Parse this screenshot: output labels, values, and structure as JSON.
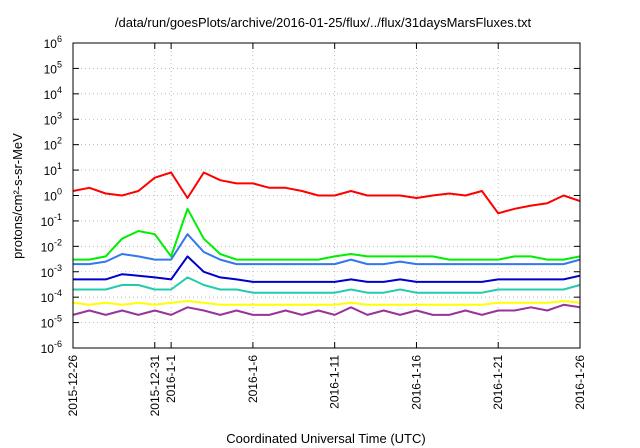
{
  "chart_data": {
    "type": "line",
    "title": "/data/run/goesPlots/archive/2016-01-25/flux/../flux/31daysMarsFluxes.txt",
    "xlabel": "Coordinated Universal Time (UTC)",
    "ylabel": "protons/cm²-s-sr-MeV",
    "y_scale": "log",
    "ylim": [
      1e-06,
      1000000.0
    ],
    "y_ticks": [
      {
        "exp": -6,
        "label": "10",
        "sup": "-6"
      },
      {
        "exp": -5,
        "label": "10",
        "sup": "-5"
      },
      {
        "exp": -4,
        "label": "10",
        "sup": "-4"
      },
      {
        "exp": -3,
        "label": "10",
        "sup": "-3"
      },
      {
        "exp": -2,
        "label": "10",
        "sup": "-2"
      },
      {
        "exp": -1,
        "label": "10",
        "sup": "-1"
      },
      {
        "exp": 0,
        "label": "10",
        "sup": "0"
      },
      {
        "exp": 1,
        "label": "10",
        "sup": "1"
      },
      {
        "exp": 2,
        "label": "10",
        "sup": "2"
      },
      {
        "exp": 3,
        "label": "10",
        "sup": "3"
      },
      {
        "exp": 4,
        "label": "10",
        "sup": "4"
      },
      {
        "exp": 5,
        "label": "10",
        "sup": "5"
      },
      {
        "exp": 6,
        "label": "10",
        "sup": "6"
      }
    ],
    "xlim": [
      "2015-12-26",
      "2016-01-26"
    ],
    "x_ticks": [
      "2015-12-26",
      "2015-12-31",
      "2016-1-1",
      "2016-1-6",
      "2016-1-11",
      "2016-1-16",
      "2016-1-21",
      "2016-1-26"
    ],
    "x_tick_dates": [
      "2015-12-26",
      "2015-12-31",
      "2016-01-01",
      "2016-01-06",
      "2016-01-11",
      "2016-01-16",
      "2016-01-21",
      "2016-01-26"
    ],
    "grid": true,
    "legend": "none",
    "series": [
      {
        "color": "#ff0000",
        "x": [
          "2015-12-26",
          "2015-12-27",
          "2015-12-28",
          "2015-12-29",
          "2015-12-30",
          "2015-12-31",
          "2016-01-01",
          "2016-01-02",
          "2016-01-03",
          "2016-01-04",
          "2016-01-05",
          "2016-01-06",
          "2016-01-07",
          "2016-01-08",
          "2016-01-09",
          "2016-01-10",
          "2016-01-11",
          "2016-01-12",
          "2016-01-13",
          "2016-01-14",
          "2016-01-15",
          "2016-01-16",
          "2016-01-17",
          "2016-01-18",
          "2016-01-19",
          "2016-01-20",
          "2016-01-21",
          "2016-01-22",
          "2016-01-23",
          "2016-01-24",
          "2016-01-25",
          "2016-01-26"
        ],
        "values": [
          1.5,
          2,
          1.2,
          1,
          1.5,
          5,
          8,
          0.8,
          8,
          4,
          3,
          3,
          2,
          2,
          1.5,
          1,
          1,
          1.5,
          1,
          1,
          1,
          0.8,
          1,
          1.2,
          1,
          1.5,
          0.2,
          0.3,
          0.4,
          0.5,
          1,
          0.6
        ]
      },
      {
        "color": "#00ee00",
        "x": [
          "2015-12-26",
          "2015-12-27",
          "2015-12-28",
          "2015-12-29",
          "2015-12-30",
          "2015-12-31",
          "2016-01-01",
          "2016-01-02",
          "2016-01-03",
          "2016-01-04",
          "2016-01-05",
          "2016-01-06",
          "2016-01-07",
          "2016-01-08",
          "2016-01-09",
          "2016-01-10",
          "2016-01-11",
          "2016-01-12",
          "2016-01-13",
          "2016-01-14",
          "2016-01-15",
          "2016-01-16",
          "2016-01-17",
          "2016-01-18",
          "2016-01-19",
          "2016-01-20",
          "2016-01-21",
          "2016-01-22",
          "2016-01-23",
          "2016-01-24",
          "2016-01-25",
          "2016-01-26"
        ],
        "values": [
          0.003,
          0.003,
          0.004,
          0.02,
          0.04,
          0.03,
          0.004,
          0.3,
          0.02,
          0.005,
          0.003,
          0.003,
          0.003,
          0.003,
          0.003,
          0.003,
          0.004,
          0.005,
          0.004,
          0.004,
          0.004,
          0.004,
          0.004,
          0.003,
          0.003,
          0.003,
          0.003,
          0.004,
          0.004,
          0.003,
          0.003,
          0.004
        ]
      },
      {
        "color": "#3377ee",
        "x": [
          "2015-12-26",
          "2015-12-27",
          "2015-12-28",
          "2015-12-29",
          "2015-12-30",
          "2015-12-31",
          "2016-01-01",
          "2016-01-02",
          "2016-01-03",
          "2016-01-04",
          "2016-01-05",
          "2016-01-06",
          "2016-01-07",
          "2016-01-08",
          "2016-01-09",
          "2016-01-10",
          "2016-01-11",
          "2016-01-12",
          "2016-01-13",
          "2016-01-14",
          "2016-01-15",
          "2016-01-16",
          "2016-01-17",
          "2016-01-18",
          "2016-01-19",
          "2016-01-20",
          "2016-01-21",
          "2016-01-22",
          "2016-01-23",
          "2016-01-24",
          "2016-01-25",
          "2016-01-26"
        ],
        "values": [
          0.002,
          0.002,
          0.0025,
          0.005,
          0.004,
          0.003,
          0.003,
          0.03,
          0.006,
          0.003,
          0.002,
          0.002,
          0.002,
          0.002,
          0.002,
          0.002,
          0.002,
          0.003,
          0.002,
          0.002,
          0.0025,
          0.002,
          0.002,
          0.002,
          0.002,
          0.002,
          0.002,
          0.002,
          0.002,
          0.002,
          0.002,
          0.003
        ]
      },
      {
        "color": "#0000cc",
        "x": [
          "2015-12-26",
          "2015-12-27",
          "2015-12-28",
          "2015-12-29",
          "2015-12-30",
          "2015-12-31",
          "2016-01-01",
          "2016-01-02",
          "2016-01-03",
          "2016-01-04",
          "2016-01-05",
          "2016-01-06",
          "2016-01-07",
          "2016-01-08",
          "2016-01-09",
          "2016-01-10",
          "2016-01-11",
          "2016-01-12",
          "2016-01-13",
          "2016-01-14",
          "2016-01-15",
          "2016-01-16",
          "2016-01-17",
          "2016-01-18",
          "2016-01-19",
          "2016-01-20",
          "2016-01-21",
          "2016-01-22",
          "2016-01-23",
          "2016-01-24",
          "2016-01-25",
          "2016-01-26"
        ],
        "values": [
          0.0005,
          0.0005,
          0.0005,
          0.0008,
          0.0007,
          0.0006,
          0.0005,
          0.004,
          0.001,
          0.0006,
          0.0005,
          0.0004,
          0.0004,
          0.0004,
          0.0004,
          0.0004,
          0.0004,
          0.0005,
          0.0004,
          0.0004,
          0.0005,
          0.0004,
          0.0004,
          0.0004,
          0.0004,
          0.0004,
          0.0005,
          0.0005,
          0.0005,
          0.0005,
          0.0005,
          0.0007
        ]
      },
      {
        "color": "#22ccaa",
        "x": [
          "2015-12-26",
          "2015-12-27",
          "2015-12-28",
          "2015-12-29",
          "2015-12-30",
          "2015-12-31",
          "2016-01-01",
          "2016-01-02",
          "2016-01-03",
          "2016-01-04",
          "2016-01-05",
          "2016-01-06",
          "2016-01-07",
          "2016-01-08",
          "2016-01-09",
          "2016-01-10",
          "2016-01-11",
          "2016-01-12",
          "2016-01-13",
          "2016-01-14",
          "2016-01-15",
          "2016-01-16",
          "2016-01-17",
          "2016-01-18",
          "2016-01-19",
          "2016-01-20",
          "2016-01-21",
          "2016-01-22",
          "2016-01-23",
          "2016-01-24",
          "2016-01-25",
          "2016-01-26"
        ],
        "values": [
          0.0002,
          0.0002,
          0.0002,
          0.0003,
          0.0003,
          0.0002,
          0.0002,
          0.0006,
          0.0003,
          0.0002,
          0.0002,
          0.00015,
          0.00015,
          0.00015,
          0.00015,
          0.00015,
          0.00015,
          0.0002,
          0.00015,
          0.00015,
          0.0002,
          0.00015,
          0.00015,
          0.00015,
          0.00015,
          0.00015,
          0.0002,
          0.0002,
          0.0002,
          0.0002,
          0.0002,
          0.0003
        ]
      },
      {
        "color": "#ffff00",
        "x": [
          "2015-12-26",
          "2015-12-27",
          "2015-12-28",
          "2015-12-29",
          "2015-12-30",
          "2015-12-31",
          "2016-01-01",
          "2016-01-02",
          "2016-01-03",
          "2016-01-04",
          "2016-01-05",
          "2016-01-06",
          "2016-01-07",
          "2016-01-08",
          "2016-01-09",
          "2016-01-10",
          "2016-01-11",
          "2016-01-12",
          "2016-01-13",
          "2016-01-14",
          "2016-01-15",
          "2016-01-16",
          "2016-01-17",
          "2016-01-18",
          "2016-01-19",
          "2016-01-20",
          "2016-01-21",
          "2016-01-22",
          "2016-01-23",
          "2016-01-24",
          "2016-01-25",
          "2016-01-26"
        ],
        "values": [
          6e-05,
          5e-05,
          6e-05,
          5e-05,
          6e-05,
          5e-05,
          6e-05,
          7e-05,
          6e-05,
          5e-05,
          5e-05,
          5e-05,
          5e-05,
          5e-05,
          5e-05,
          5e-05,
          5e-05,
          6e-05,
          5e-05,
          5e-05,
          5e-05,
          5e-05,
          5e-05,
          5e-05,
          5e-05,
          5e-05,
          6e-05,
          6e-05,
          6e-05,
          6e-05,
          7e-05,
          6e-05
        ]
      },
      {
        "color": "#99339a",
        "x": [
          "2015-12-26",
          "2015-12-27",
          "2015-12-28",
          "2015-12-29",
          "2015-12-30",
          "2015-12-31",
          "2016-01-01",
          "2016-01-02",
          "2016-01-03",
          "2016-01-04",
          "2016-01-05",
          "2016-01-06",
          "2016-01-07",
          "2016-01-08",
          "2016-01-09",
          "2016-01-10",
          "2016-01-11",
          "2016-01-12",
          "2016-01-13",
          "2016-01-14",
          "2016-01-15",
          "2016-01-16",
          "2016-01-17",
          "2016-01-18",
          "2016-01-19",
          "2016-01-20",
          "2016-01-21",
          "2016-01-22",
          "2016-01-23",
          "2016-01-24",
          "2016-01-25",
          "2016-01-26"
        ],
        "values": [
          2e-05,
          3e-05,
          2e-05,
          3e-05,
          2e-05,
          3e-05,
          2e-05,
          4e-05,
          3e-05,
          2e-05,
          3e-05,
          2e-05,
          2e-05,
          3e-05,
          2e-05,
          3e-05,
          2e-05,
          4e-05,
          2e-05,
          3e-05,
          2e-05,
          3e-05,
          2e-05,
          2e-05,
          3e-05,
          2e-05,
          3e-05,
          3e-05,
          4e-05,
          3e-05,
          5e-05,
          4e-05
        ]
      }
    ]
  }
}
